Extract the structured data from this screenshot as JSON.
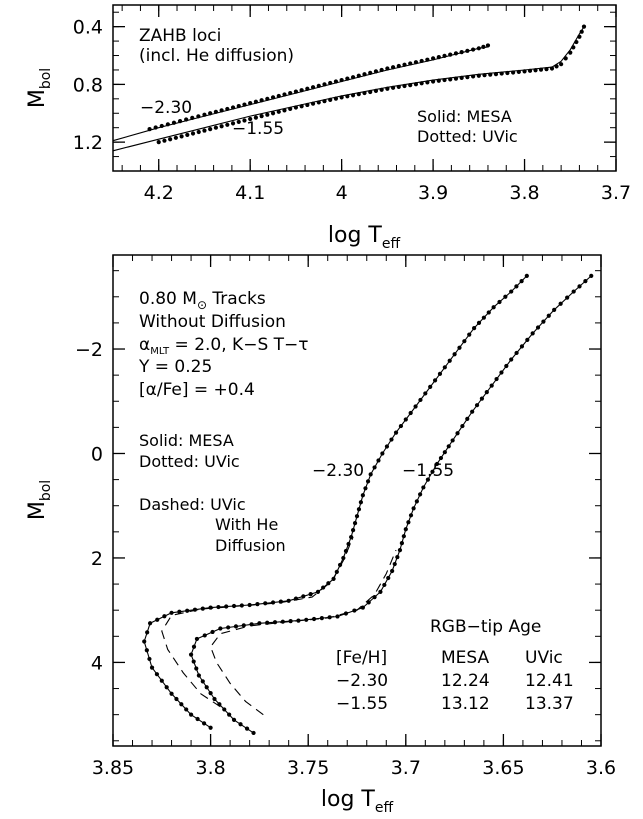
{
  "figure_title": "",
  "chart_data": [
    {
      "type": "line",
      "panel": "top",
      "x_axis": {
        "label_main": "log T",
        "label_sub": "eff",
        "range": [
          4.25,
          3.7
        ],
        "reversed": true,
        "ticks": [
          4.2,
          4.1,
          4.0,
          3.9,
          3.8,
          3.7
        ],
        "tick_labels": [
          "4.2",
          "4.1",
          "4",
          "3.9",
          "3.8",
          "3.7"
        ]
      },
      "y_axis": {
        "label_main": "M",
        "label_sub": "bol",
        "range": [
          0.25,
          1.4
        ],
        "reversed": true,
        "ticks": [
          0.4,
          0.8,
          1.2
        ],
        "tick_labels": [
          "0.4",
          "0.8",
          "1.2"
        ]
      },
      "annotations": {
        "title_line1": "ZAHB loci",
        "title_line2": "(incl. He diffusion)",
        "legend_solid": "Solid: MESA",
        "legend_dotted": "Dotted: UVic",
        "label_a": "−2.30",
        "label_b": "−1.55"
      },
      "series": [
        {
          "name": "−2.30",
          "source": "MESA",
          "style": "solid",
          "x": [
            4.25,
            4.2,
            4.15,
            4.1,
            4.05,
            4.0,
            3.95,
            3.9,
            3.85,
            3.84
          ],
          "y": [
            1.19,
            1.1,
            1.02,
            0.94,
            0.86,
            0.78,
            0.7,
            0.63,
            0.55,
            0.54
          ]
        },
        {
          "name": "−2.30",
          "source": "UVic",
          "style": "dotted",
          "x": [
            4.21,
            4.15,
            4.1,
            4.05,
            4.0,
            3.95,
            3.9,
            3.85,
            3.84
          ],
          "y": [
            1.11,
            1.01,
            0.93,
            0.85,
            0.77,
            0.69,
            0.62,
            0.55,
            0.53
          ]
        },
        {
          "name": "−1.55",
          "source": "MESA",
          "style": "solid",
          "x": [
            4.25,
            4.2,
            4.15,
            4.1,
            4.05,
            4.0,
            3.95,
            3.9,
            3.85,
            3.8,
            3.77,
            3.76,
            3.75,
            3.74,
            3.735
          ],
          "y": [
            1.26,
            1.18,
            1.1,
            1.02,
            0.95,
            0.88,
            0.82,
            0.77,
            0.73,
            0.7,
            0.68,
            0.64,
            0.56,
            0.45,
            0.4
          ]
        },
        {
          "name": "−1.55",
          "source": "UVic",
          "style": "dotted",
          "x": [
            4.2,
            4.15,
            4.1,
            4.05,
            4.0,
            3.95,
            3.9,
            3.85,
            3.8,
            3.77,
            3.76,
            3.75,
            3.74,
            3.735
          ],
          "y": [
            1.2,
            1.12,
            1.04,
            0.96,
            0.89,
            0.83,
            0.78,
            0.74,
            0.71,
            0.69,
            0.66,
            0.58,
            0.47,
            0.4
          ]
        }
      ]
    },
    {
      "type": "line",
      "panel": "bottom",
      "x_axis": {
        "label_main": "log T",
        "label_sub": "eff",
        "range": [
          3.85,
          3.6
        ],
        "reversed": true,
        "ticks": [
          3.85,
          3.8,
          3.75,
          3.7,
          3.65,
          3.6
        ],
        "tick_labels": [
          "3.85",
          "3.8",
          "3.75",
          "3.7",
          "3.65",
          "3.6"
        ]
      },
      "y_axis": {
        "label_main": "M",
        "label_sub": "bol",
        "range": [
          -3.8,
          5.6
        ],
        "reversed": true,
        "ticks": [
          -2,
          0,
          2,
          4
        ],
        "tick_labels": [
          "−2",
          "0",
          "2",
          "4"
        ]
      },
      "annotations": {
        "info_line1_a": "0.80 M",
        "info_line1_sun": "⊙",
        "info_line1_b": " Tracks",
        "info_line2": "Without Diffusion",
        "info_line3_alpha": "α",
        "info_line3_sub": "MLT",
        "info_line3_rest": " = 2.0, K−S T−τ",
        "info_line4": "Y = 0.25",
        "info_line5": "[α/Fe] = +0.4",
        "legend_solid": "Solid: MESA",
        "legend_dotted": "Dotted: UVic",
        "legend_dashed_1": "Dashed: UVic",
        "legend_dashed_2": "With He",
        "legend_dashed_3": "Diffusion",
        "label_a": "−2.30",
        "label_b": "−1.55"
      },
      "age_table": {
        "title": "RGB−tip Age",
        "columns": [
          "[Fe/H]",
          "MESA",
          "UVic"
        ],
        "rows": [
          [
            "−2.30",
            "12.24",
            "12.41"
          ],
          [
            "−1.55",
            "13.12",
            "13.37"
          ]
        ]
      },
      "series": [
        {
          "name": "−2.30",
          "source": "MESA",
          "style": "solid",
          "x": [
            3.8,
            3.81,
            3.82,
            3.83,
            3.834,
            3.831,
            3.82,
            3.8,
            3.78,
            3.76,
            3.745,
            3.737,
            3.732,
            3.728,
            3.725,
            3.722,
            3.718,
            3.712,
            3.705,
            3.695,
            3.685,
            3.675,
            3.665,
            3.655,
            3.646,
            3.638
          ],
          "y": [
            5.25,
            5.0,
            4.6,
            4.1,
            3.6,
            3.25,
            3.05,
            2.95,
            2.9,
            2.82,
            2.65,
            2.4,
            2.0,
            1.6,
            1.2,
            0.8,
            0.4,
            0.0,
            -0.4,
            -0.9,
            -1.4,
            -1.9,
            -2.4,
            -2.8,
            -3.1,
            -3.4
          ]
        },
        {
          "name": "−2.30",
          "source": "UVic",
          "style": "dotted",
          "x": [
            3.8,
            3.81,
            3.82,
            3.83,
            3.834,
            3.831,
            3.82,
            3.8,
            3.78,
            3.76,
            3.745,
            3.737,
            3.732,
            3.728,
            3.725,
            3.722,
            3.718,
            3.712,
            3.705,
            3.695,
            3.685,
            3.675,
            3.665,
            3.655,
            3.646,
            3.638
          ],
          "y": [
            5.25,
            5.0,
            4.6,
            4.1,
            3.6,
            3.25,
            3.05,
            2.95,
            2.9,
            2.82,
            2.65,
            2.4,
            2.0,
            1.6,
            1.2,
            0.8,
            0.4,
            0.0,
            -0.4,
            -0.9,
            -1.4,
            -1.9,
            -2.4,
            -2.8,
            -3.1,
            -3.4
          ]
        },
        {
          "name": "−2.30",
          "source": "UVic He diffusion",
          "style": "dashed",
          "x": [
            3.795,
            3.805,
            3.814,
            3.822,
            3.825,
            3.82,
            3.805,
            3.785,
            3.765,
            3.748,
            3.738,
            3.732,
            3.727
          ],
          "y": [
            4.85,
            4.6,
            4.2,
            3.75,
            3.4,
            3.1,
            2.98,
            2.92,
            2.86,
            2.75,
            2.45,
            2.05,
            1.6
          ]
        },
        {
          "name": "−1.55",
          "source": "MESA",
          "style": "solid",
          "x": [
            3.778,
            3.788,
            3.798,
            3.806,
            3.81,
            3.807,
            3.795,
            3.775,
            3.755,
            3.735,
            3.722,
            3.713,
            3.707,
            3.703,
            3.7,
            3.696,
            3.691,
            3.684,
            3.676,
            3.666,
            3.656,
            3.646,
            3.635,
            3.624,
            3.614,
            3.605
          ],
          "y": [
            5.35,
            5.1,
            4.7,
            4.25,
            3.85,
            3.55,
            3.35,
            3.25,
            3.2,
            3.12,
            2.95,
            2.65,
            2.25,
            1.85,
            1.45,
            1.05,
            0.65,
            0.2,
            -0.25,
            -0.8,
            -1.3,
            -1.8,
            -2.3,
            -2.75,
            -3.1,
            -3.4
          ]
        },
        {
          "name": "−1.55",
          "source": "UVic",
          "style": "dotted",
          "x": [
            3.778,
            3.788,
            3.798,
            3.806,
            3.81,
            3.807,
            3.795,
            3.775,
            3.755,
            3.735,
            3.722,
            3.713,
            3.707,
            3.703,
            3.7,
            3.696,
            3.691,
            3.684,
            3.676,
            3.666,
            3.656,
            3.646,
            3.635,
            3.624,
            3.614,
            3.605
          ],
          "y": [
            5.35,
            5.1,
            4.7,
            4.25,
            3.85,
            3.55,
            3.35,
            3.25,
            3.2,
            3.12,
            2.95,
            2.65,
            2.25,
            1.85,
            1.45,
            1.05,
            0.65,
            0.2,
            -0.25,
            -0.8,
            -1.3,
            -1.8,
            -2.3,
            -2.75,
            -3.1,
            -3.4
          ]
        },
        {
          "name": "−1.55",
          "source": "UVic He diffusion",
          "style": "dashed",
          "x": [
            3.773,
            3.782,
            3.79,
            3.797,
            3.8,
            3.795,
            3.78,
            3.76,
            3.74,
            3.725,
            3.716,
            3.71,
            3.705
          ],
          "y": [
            5.0,
            4.75,
            4.4,
            4.0,
            3.7,
            3.45,
            3.3,
            3.22,
            3.15,
            3.0,
            2.7,
            2.3,
            1.85
          ]
        }
      ]
    }
  ]
}
